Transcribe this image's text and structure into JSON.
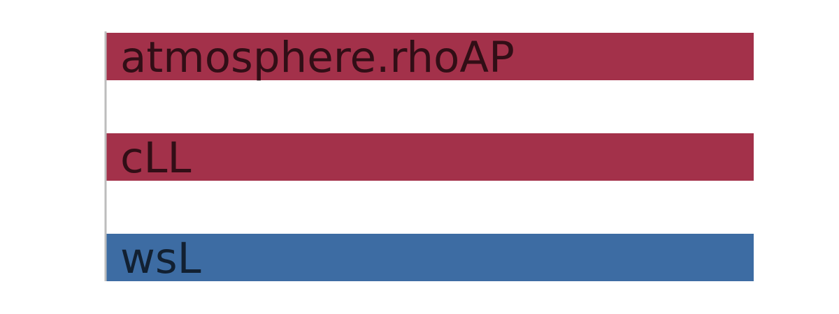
{
  "chart_data": {
    "type": "bar",
    "orientation": "horizontal",
    "categories": [
      "atmosphere.rhoAP",
      "cLL",
      "wsL"
    ],
    "values": [
      1,
      1,
      1
    ],
    "colors": [
      "#a3314a",
      "#a3314a",
      "#3d6ca3"
    ],
    "xlim": [
      0,
      1
    ],
    "grid": false,
    "legend": "none",
    "title": "",
    "xlabel": "",
    "ylabel": ""
  }
}
